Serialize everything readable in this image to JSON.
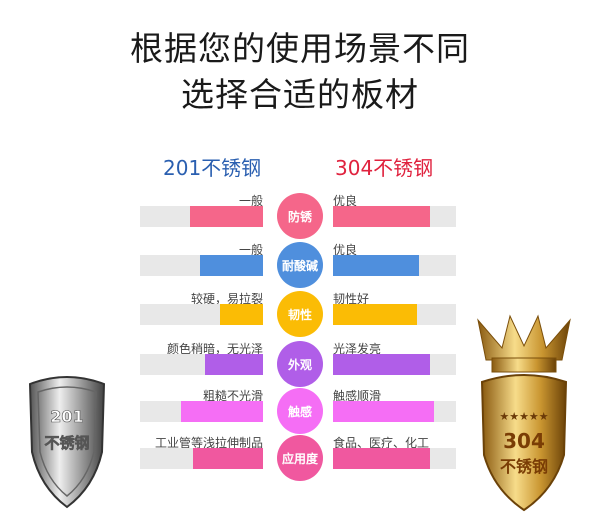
{
  "title_line1": "根据您的使用场景不同",
  "title_line2": "选择合适的板材",
  "left_header": "201不锈钢",
  "right_header": "304不锈钢",
  "colors": {
    "left_header": "#2a5fb0",
    "right_header": "#e0223e",
    "track": "#e8e8e8"
  },
  "rows": [
    {
      "category": "防锈",
      "color": "#f5668a",
      "left_text": "一般",
      "left_level": 0.59,
      "right_text": "优良",
      "right_level": 0.79
    },
    {
      "category": "耐酸碱",
      "color": "#4f8fdd",
      "left_text": "一般",
      "left_level": 0.51,
      "right_text": "优良",
      "right_level": 0.7
    },
    {
      "category": "韧性",
      "color": "#fbbc05",
      "left_text": "较硬，易拉裂",
      "left_level": 0.35,
      "right_text": "韧性好",
      "right_level": 0.68
    },
    {
      "category": "外观",
      "color": "#b05ee8",
      "left_text": "颜色稍暗，无光泽",
      "left_level": 0.47,
      "right_text": "光泽发亮",
      "right_level": 0.79
    },
    {
      "category": "触感",
      "color": "#f56ef5",
      "left_text": "粗糙不光滑",
      "left_level": 0.67,
      "right_text": "触感顺滑",
      "right_level": 0.82
    },
    {
      "category": "应用度",
      "color": "#f0589f",
      "left_text": "工业管等浅拉伸制品",
      "left_level": 0.57,
      "right_text": "食品、医疗、化工",
      "right_level": 0.79
    }
  ],
  "left_shield": {
    "line1": "201",
    "line2": "不锈钢"
  },
  "right_shield": {
    "line1": "304",
    "line2": "不锈钢",
    "stars": 5
  }
}
